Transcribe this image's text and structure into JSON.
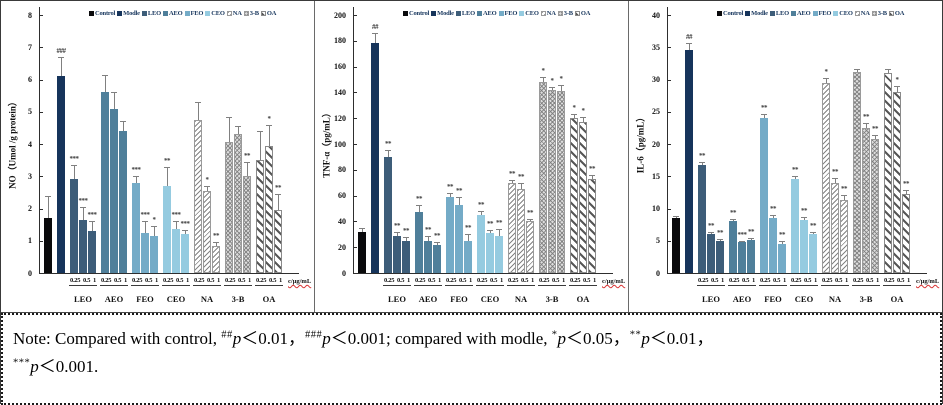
{
  "figure": {
    "legend_items": [
      "Control",
      "Modle",
      "LEO",
      "AEO",
      "FEO",
      "CEO",
      "NA",
      "3-B",
      "OA"
    ],
    "series_fills": {
      "Control": "#0a0a0c",
      "Modle": "#16345b",
      "LEO": "#3d5d79",
      "AEO": "#4f7f9a",
      "FEO": "#74abc7",
      "CEO": "#95cbe0",
      "NA": "pattern-na",
      "3-B": "pattern-3b",
      "OA": "pattern-oa"
    },
    "legend_text_color": "#17365d",
    "unit_label": "c/μg/mL",
    "note_underline_color": "#d83030"
  },
  "chart_data": [
    {
      "type": "bar",
      "ylabel": "NO（Umol /g protein）",
      "ylim": [
        0,
        8
      ],
      "ytick_step": 1,
      "groups": [
        {
          "series": "Control",
          "label": "",
          "sub": [],
          "bars": [
            {
              "x": "Control",
              "value": 1.7,
              "err": 0.7,
              "sig": ""
            }
          ]
        },
        {
          "series": "Modle",
          "label": "",
          "sub": [],
          "bars": [
            {
              "x": "Modle",
              "value": 6.1,
              "err": 0.6,
              "sig": "###"
            }
          ]
        },
        {
          "series": "LEO",
          "label": "LEO",
          "sub": [
            "0.25",
            "0.5",
            "1"
          ],
          "bars": [
            {
              "x": "0.25",
              "value": 2.9,
              "err": 0.45,
              "sig": "***"
            },
            {
              "x": "0.5",
              "value": 1.65,
              "err": 0.4,
              "sig": "***"
            },
            {
              "x": "1",
              "value": 1.3,
              "err": 0.3,
              "sig": "***"
            }
          ]
        },
        {
          "series": "AEO",
          "label": "AEO",
          "sub": [
            "0.25",
            "0.5",
            "1"
          ],
          "bars": [
            {
              "x": "0.25",
              "value": 5.6,
              "err": 0.55,
              "sig": ""
            },
            {
              "x": "0.5",
              "value": 5.1,
              "err": 0.5,
              "sig": ""
            },
            {
              "x": "1",
              "value": 4.4,
              "err": 0.3,
              "sig": ""
            }
          ]
        },
        {
          "series": "FEO",
          "label": "FEO",
          "sub": [
            "0.25",
            "0.5",
            "1"
          ],
          "bars": [
            {
              "x": "0.25",
              "value": 2.8,
              "err": 0.2,
              "sig": "***"
            },
            {
              "x": "0.5",
              "value": 1.25,
              "err": 0.35,
              "sig": "***"
            },
            {
              "x": "1",
              "value": 1.15,
              "err": 0.3,
              "sig": "*"
            }
          ]
        },
        {
          "series": "CEO",
          "label": "CEO",
          "sub": [
            "0.25",
            "0.5",
            "1"
          ],
          "bars": [
            {
              "x": "0.25",
              "value": 2.7,
              "err": 0.6,
              "sig": "**"
            },
            {
              "x": "0.5",
              "value": 1.35,
              "err": 0.25,
              "sig": "***"
            },
            {
              "x": "1",
              "value": 1.2,
              "err": 0.12,
              "sig": "***"
            }
          ]
        },
        {
          "series": "NA",
          "label": "NA",
          "sub": [
            "0.25",
            "0.5",
            "1"
          ],
          "bars": [
            {
              "x": "0.25",
              "value": 4.75,
              "err": 0.55,
              "sig": ""
            },
            {
              "x": "0.5",
              "value": 2.55,
              "err": 0.15,
              "sig": "*"
            },
            {
              "x": "1",
              "value": 0.85,
              "err": 0.1,
              "sig": "**"
            }
          ]
        },
        {
          "series": "3-B",
          "label": "3-B",
          "sub": [
            "0.25",
            "0.5",
            "1"
          ],
          "bars": [
            {
              "x": "0.25",
              "value": 4.05,
              "err": 0.8,
              "sig": ""
            },
            {
              "x": "0.5",
              "value": 4.3,
              "err": 0.25,
              "sig": ""
            },
            {
              "x": "1",
              "value": 3.0,
              "err": 0.45,
              "sig": "**"
            }
          ]
        },
        {
          "series": "OA",
          "label": "OA",
          "sub": [
            "0.25",
            "0.5",
            "1"
          ],
          "bars": [
            {
              "x": "0.25",
              "value": 3.5,
              "err": 0.9,
              "sig": ""
            },
            {
              "x": "0.5",
              "value": 3.95,
              "err": 0.65,
              "sig": "*"
            },
            {
              "x": "1",
              "value": 1.95,
              "err": 0.5,
              "sig": "**"
            }
          ]
        }
      ]
    },
    {
      "type": "bar",
      "ylabel": "TNF-α（pg/mL）",
      "ylim": [
        0,
        200
      ],
      "ytick_step": 20,
      "groups": [
        {
          "series": "Control",
          "label": "",
          "sub": [],
          "bars": [
            {
              "x": "Control",
              "value": 32,
              "err": 3,
              "sig": ""
            }
          ]
        },
        {
          "series": "Modle",
          "label": "",
          "sub": [],
          "bars": [
            {
              "x": "Modle",
              "value": 178,
              "err": 8,
              "sig": "##"
            }
          ]
        },
        {
          "series": "LEO",
          "label": "LEO",
          "sub": [
            "0.25",
            "0.5",
            "1"
          ],
          "bars": [
            {
              "x": "0.25",
              "value": 90,
              "err": 5,
              "sig": "**"
            },
            {
              "x": "0.5",
              "value": 29,
              "err": 3,
              "sig": "**"
            },
            {
              "x": "1",
              "value": 25,
              "err": 3,
              "sig": "**"
            }
          ]
        },
        {
          "series": "AEO",
          "label": "AEO",
          "sub": [
            "0.25",
            "0.5",
            "1"
          ],
          "bars": [
            {
              "x": "0.25",
              "value": 47,
              "err": 6,
              "sig": "**"
            },
            {
              "x": "0.5",
              "value": 25,
              "err": 4,
              "sig": "**"
            },
            {
              "x": "1",
              "value": 22,
              "err": 2,
              "sig": "**"
            }
          ]
        },
        {
          "series": "FEO",
          "label": "FEO",
          "sub": [
            "0.25",
            "0.5",
            "1"
          ],
          "bars": [
            {
              "x": "0.25",
              "value": 59,
              "err": 3,
              "sig": "**"
            },
            {
              "x": "0.5",
              "value": 53,
              "err": 6,
              "sig": "**"
            },
            {
              "x": "1",
              "value": 25,
              "err": 5,
              "sig": "**"
            }
          ]
        },
        {
          "series": "CEO",
          "label": "CEO",
          "sub": [
            "0.25",
            "0.5",
            "1"
          ],
          "bars": [
            {
              "x": "0.25",
              "value": 45,
              "err": 3,
              "sig": "**"
            },
            {
              "x": "0.5",
              "value": 31,
              "err": 2,
              "sig": "**"
            },
            {
              "x": "1",
              "value": 29,
              "err": 5,
              "sig": "**"
            }
          ]
        },
        {
          "series": "NA",
          "label": "NA",
          "sub": [
            "0.25",
            "0.5",
            "1"
          ],
          "bars": [
            {
              "x": "0.25",
              "value": 70,
              "err": 2,
              "sig": "**"
            },
            {
              "x": "0.5",
              "value": 65,
              "err": 5,
              "sig": "**"
            },
            {
              "x": "1",
              "value": 40,
              "err": 2,
              "sig": "**"
            }
          ]
        },
        {
          "series": "3-B",
          "label": "3-B",
          "sub": [
            "0.25",
            "0.5",
            "1"
          ],
          "bars": [
            {
              "x": "0.25",
              "value": 148,
              "err": 4,
              "sig": "*"
            },
            {
              "x": "0.5",
              "value": 142,
              "err": 2,
              "sig": "*"
            },
            {
              "x": "1",
              "value": 141,
              "err": 5,
              "sig": "*"
            }
          ]
        },
        {
          "series": "OA",
          "label": "OA",
          "sub": [
            "0.25",
            "0.5",
            "1"
          ],
          "bars": [
            {
              "x": "0.25",
              "value": 120,
              "err": 3,
              "sig": "*"
            },
            {
              "x": "0.5",
              "value": 117,
              "err": 4,
              "sig": "*"
            },
            {
              "x": "1",
              "value": 73,
              "err": 3,
              "sig": "**"
            }
          ]
        }
      ]
    },
    {
      "type": "bar",
      "ylabel": "IL-6（pg/mL）",
      "ylim": [
        0,
        40
      ],
      "ytick_step": 5,
      "groups": [
        {
          "series": "Control",
          "label": "",
          "sub": [],
          "bars": [
            {
              "x": "Control",
              "value": 8.5,
              "err": 0.3,
              "sig": ""
            }
          ]
        },
        {
          "series": "Modle",
          "label": "",
          "sub": [],
          "bars": [
            {
              "x": "Modle",
              "value": 34.5,
              "err": 1.2,
              "sig": "##"
            }
          ]
        },
        {
          "series": "LEO",
          "label": "LEO",
          "sub": [
            "0.25",
            "0.5",
            "1"
          ],
          "bars": [
            {
              "x": "0.25",
              "value": 16.7,
              "err": 0.5,
              "sig": "**"
            },
            {
              "x": "0.5",
              "value": 6.0,
              "err": 0.4,
              "sig": "**"
            },
            {
              "x": "1",
              "value": 5.0,
              "err": 0.2,
              "sig": "**"
            }
          ]
        },
        {
          "series": "AEO",
          "label": "AEO",
          "sub": [
            "0.25",
            "0.5",
            "1"
          ],
          "bars": [
            {
              "x": "0.25",
              "value": 8.0,
              "err": 0.3,
              "sig": "**"
            },
            {
              "x": "0.5",
              "value": 4.8,
              "err": 0.2,
              "sig": "***"
            },
            {
              "x": "1",
              "value": 5.1,
              "err": 0.4,
              "sig": "**"
            }
          ]
        },
        {
          "series": "FEO",
          "label": "FEO",
          "sub": [
            "0.25",
            "0.5",
            "1"
          ],
          "bars": [
            {
              "x": "0.25",
              "value": 24.0,
              "err": 0.7,
              "sig": "**"
            },
            {
              "x": "0.5",
              "value": 8.5,
              "err": 0.5,
              "sig": "**"
            },
            {
              "x": "1",
              "value": 4.5,
              "err": 0.4,
              "sig": "**"
            }
          ]
        },
        {
          "series": "CEO",
          "label": "CEO",
          "sub": [
            "0.25",
            "0.5",
            "1"
          ],
          "bars": [
            {
              "x": "0.25",
              "value": 14.5,
              "err": 0.5,
              "sig": "**"
            },
            {
              "x": "0.5",
              "value": 8.2,
              "err": 0.5,
              "sig": "**"
            },
            {
              "x": "1",
              "value": 6.1,
              "err": 0.3,
              "sig": "**"
            }
          ]
        },
        {
          "series": "NA",
          "label": "NA",
          "sub": [
            "0.25",
            "0.5",
            "1"
          ],
          "bars": [
            {
              "x": "0.25",
              "value": 29.5,
              "err": 0.8,
              "sig": "*"
            },
            {
              "x": "0.5",
              "value": 14.0,
              "err": 0.7,
              "sig": "**"
            },
            {
              "x": "1",
              "value": 11.3,
              "err": 0.8,
              "sig": "**"
            }
          ]
        },
        {
          "series": "3-B",
          "label": "3-B",
          "sub": [
            "0.25",
            "0.5",
            "1"
          ],
          "bars": [
            {
              "x": "0.25",
              "value": 31.2,
              "err": 0.5,
              "sig": ""
            },
            {
              "x": "0.5",
              "value": 22.5,
              "err": 0.8,
              "sig": "**"
            },
            {
              "x": "1",
              "value": 20.8,
              "err": 0.6,
              "sig": "**"
            }
          ]
        },
        {
          "series": "OA",
          "label": "OA",
          "sub": [
            "0.25",
            "0.5",
            "1"
          ],
          "bars": [
            {
              "x": "0.25",
              "value": 31.0,
              "err": 0.6,
              "sig": ""
            },
            {
              "x": "0.5",
              "value": 28.0,
              "err": 1.0,
              "sig": "*"
            },
            {
              "x": "1",
              "value": 12.3,
              "err": 0.6,
              "sig": "**"
            }
          ]
        }
      ]
    }
  ],
  "note": {
    "segments": [
      {
        "t": "Note: Compared with control, "
      },
      {
        "sup": "##"
      },
      {
        "i": "p"
      },
      {
        "t": "＜0.01，"
      },
      {
        "sup": "###"
      },
      {
        "i": "p"
      },
      {
        "t": "＜0.001; compared with modle, "
      },
      {
        "sup": "*"
      },
      {
        "i": "p"
      },
      {
        "t": "＜0.05，"
      },
      {
        "sup": "**"
      },
      {
        "i": "p"
      },
      {
        "t": "＜0.01，"
      },
      {
        "br": true
      },
      {
        "sup": "***"
      },
      {
        "i": "p"
      },
      {
        "t": "＜0.001."
      }
    ]
  }
}
